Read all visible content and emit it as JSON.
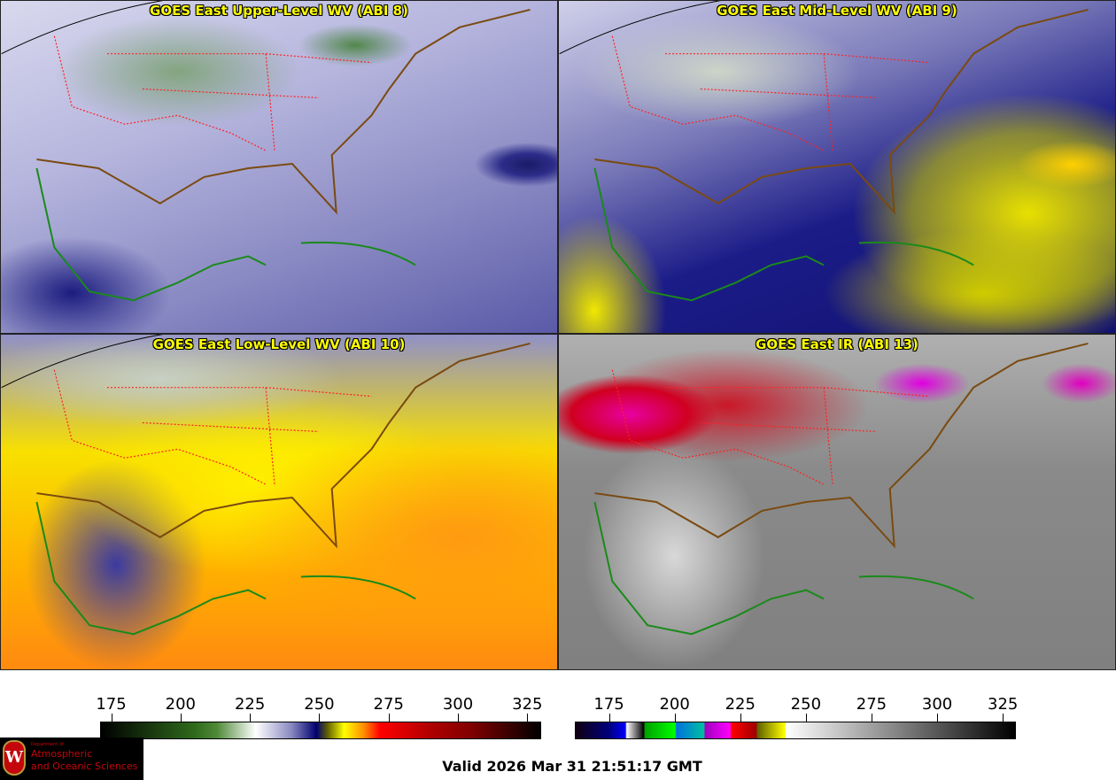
{
  "panels": [
    {
      "title": "GOES East Upper-Level WV (ABI 8)"
    },
    {
      "title": "GOES East Mid-Level WV (ABI 9)"
    },
    {
      "title": "GOES East Low-Level WV (ABI 10)"
    },
    {
      "title": "GOES East IR (ABI 13)"
    }
  ],
  "colorbar_wv": {
    "ticks": [
      "175",
      "200",
      "225",
      "250",
      "275",
      "300",
      "325"
    ],
    "range": [
      171,
      330
    ],
    "stops": [
      {
        "v": 171,
        "c": "#000000"
      },
      {
        "v": 205,
        "c": "#2f6a1c"
      },
      {
        "v": 213,
        "c": "#4f8a38"
      },
      {
        "v": 227,
        "c": "#ffffff"
      },
      {
        "v": 240,
        "c": "#8888c0"
      },
      {
        "v": 249,
        "c": "#000070"
      },
      {
        "v": 253,
        "c": "#606000"
      },
      {
        "v": 259,
        "c": "#ffff00"
      },
      {
        "v": 266,
        "c": "#ff9000"
      },
      {
        "v": 272,
        "c": "#ff0000"
      },
      {
        "v": 290,
        "c": "#b00000"
      },
      {
        "v": 305,
        "c": "#800000"
      },
      {
        "v": 330,
        "c": "#000000"
      }
    ]
  },
  "colorbar_ir": {
    "ticks": [
      "175",
      "200",
      "225",
      "250",
      "275",
      "300",
      "325"
    ],
    "range": [
      162,
      330
    ],
    "stops": [
      {
        "v": 162,
        "c": "#100010"
      },
      {
        "v": 175,
        "c": "#000080"
      },
      {
        "v": 181,
        "c": "#0000ff"
      },
      {
        "v": 181.5,
        "c": "#ffffff"
      },
      {
        "v": 188,
        "c": "#000000"
      },
      {
        "v": 188.5,
        "c": "#00a000"
      },
      {
        "v": 200,
        "c": "#00ff00"
      },
      {
        "v": 200.5,
        "c": "#0070e0"
      },
      {
        "v": 211,
        "c": "#00c0a0"
      },
      {
        "v": 211.5,
        "c": "#a000c0"
      },
      {
        "v": 221,
        "c": "#ff00ff"
      },
      {
        "v": 221.5,
        "c": "#ff0000"
      },
      {
        "v": 231,
        "c": "#a00000"
      },
      {
        "v": 231.5,
        "c": "#606000"
      },
      {
        "v": 242,
        "c": "#ffff00"
      },
      {
        "v": 242.5,
        "c": "#ffffff"
      },
      {
        "v": 330,
        "c": "#000000"
      }
    ]
  },
  "logo": {
    "line1": "Department of",
    "line2": "Atmospheric",
    "line3": "and Oceanic Sciences",
    "crest": "W"
  },
  "valid_text": "Valid 2026 Mar 31 21:51:17 GMT",
  "colors": {
    "title": "#ffff00",
    "state_borders": "#ff2020",
    "coast_na": "#7a4a10",
    "coast_latam": "#1a8a1a"
  }
}
